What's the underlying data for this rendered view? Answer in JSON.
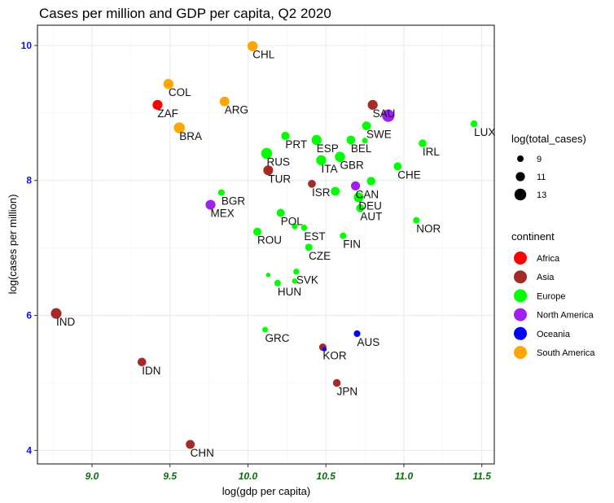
{
  "chart_data": {
    "type": "scatter",
    "title": "Cases per million and GDP per capita, Q2 2020",
    "xlabel": "log(gdp per capita)",
    "ylabel": "log(cases per million)",
    "xlim": [
      8.65,
      11.58
    ],
    "ylim": [
      3.8,
      10.3
    ],
    "xticks": [
      9.0,
      9.5,
      10.0,
      10.5,
      11.0,
      11.5
    ],
    "xtick_labels": [
      "9.0",
      "9.5",
      "10.0",
      "10.5",
      "11.0",
      "11.5"
    ],
    "yticks": [
      4,
      6,
      8,
      10
    ],
    "ytick_labels": [
      "4",
      "6",
      "8",
      "10"
    ],
    "grid": true,
    "legend_position": "right",
    "size_legend": {
      "title": "log(total_cases)",
      "entries": [
        {
          "label": "9",
          "value": 9
        },
        {
          "label": "11",
          "value": 11
        },
        {
          "label": "13",
          "value": 13
        }
      ]
    },
    "color_legend": {
      "title": "continent",
      "entries": [
        {
          "label": "Africa",
          "color": "#ff0000"
        },
        {
          "label": "Asia",
          "color": "#a52a2a"
        },
        {
          "label": "Europe",
          "color": "#00ff00"
        },
        {
          "label": "North America",
          "color": "#a020f0"
        },
        {
          "label": "Oceania",
          "color": "#0000ff"
        },
        {
          "label": "South America",
          "color": "#ffa500"
        }
      ]
    },
    "points": [
      {
        "label": "CHL",
        "x": 10.03,
        "y": 9.99,
        "size": 12.5,
        "continent": "South America"
      },
      {
        "label": "COL",
        "x": 9.49,
        "y": 9.43,
        "size": 12.4,
        "continent": "South America"
      },
      {
        "label": "ZAF",
        "x": 9.42,
        "y": 9.12,
        "size": 12.3,
        "continent": "Africa"
      },
      {
        "label": "ARG",
        "x": 9.85,
        "y": 9.17,
        "size": 12.0,
        "continent": "South America"
      },
      {
        "label": "BRA",
        "x": 9.56,
        "y": 8.78,
        "size": 13.3,
        "continent": "South America"
      },
      {
        "label": "SAU",
        "x": 10.8,
        "y": 9.12,
        "size": 12.3,
        "continent": "Asia"
      },
      {
        "label": "",
        "x": 10.9,
        "y": 8.96,
        "size": 14.7,
        "continent": "North America"
      },
      {
        "label": "SWE",
        "x": 10.76,
        "y": 8.81,
        "size": 11.2,
        "continent": "Europe"
      },
      {
        "label": "LUX",
        "x": 11.45,
        "y": 8.84,
        "size": 9.3,
        "continent": "Europe"
      },
      {
        "label": "PRT",
        "x": 10.24,
        "y": 8.66,
        "size": 10.7,
        "continent": "Europe"
      },
      {
        "label": "ESP",
        "x": 10.44,
        "y": 8.6,
        "size": 12.4,
        "continent": "Europe"
      },
      {
        "label": "BEL",
        "x": 10.66,
        "y": 8.6,
        "size": 11.1,
        "continent": "Europe"
      },
      {
        "label": "",
        "x": 10.75,
        "y": 8.59,
        "size": 8.2,
        "continent": "Europe"
      },
      {
        "label": "IRL",
        "x": 11.12,
        "y": 8.55,
        "size": 10.2,
        "continent": "Europe"
      },
      {
        "label": "RUS",
        "x": 10.12,
        "y": 8.4,
        "size": 13.4,
        "continent": "Europe"
      },
      {
        "label": "ITA",
        "x": 10.47,
        "y": 8.3,
        "size": 12.5,
        "continent": "Europe"
      },
      {
        "label": "GBR",
        "x": 10.59,
        "y": 8.35,
        "size": 12.6,
        "continent": "Europe"
      },
      {
        "label": "CHE",
        "x": 10.96,
        "y": 8.21,
        "size": 10.4,
        "continent": "Europe"
      },
      {
        "label": "TUR",
        "x": 10.13,
        "y": 8.15,
        "size": 12.2,
        "continent": "Asia"
      },
      {
        "label": "ISR",
        "x": 10.41,
        "y": 7.95,
        "size": 10.3,
        "continent": "Asia"
      },
      {
        "label": "",
        "x": 10.56,
        "y": 7.84,
        "size": 11.2,
        "continent": "Europe"
      },
      {
        "label": "CAN",
        "x": 10.69,
        "y": 7.92,
        "size": 11.5,
        "continent": "North America"
      },
      {
        "label": "",
        "x": 10.79,
        "y": 7.99,
        "size": 11.0,
        "continent": "Europe"
      },
      {
        "label": "DEU",
        "x": 10.71,
        "y": 7.75,
        "size": 12.2,
        "continent": "Europe"
      },
      {
        "label": "AUT",
        "x": 10.72,
        "y": 7.59,
        "size": 10.5,
        "continent": "Europe"
      },
      {
        "label": "BGR",
        "x": 9.83,
        "y": 7.82,
        "size": 9.0,
        "continent": "Europe"
      },
      {
        "label": "MEX",
        "x": 9.76,
        "y": 7.64,
        "size": 12.3,
        "continent": "North America"
      },
      {
        "label": "POL",
        "x": 10.21,
        "y": 7.52,
        "size": 10.6,
        "continent": "Europe"
      },
      {
        "label": "",
        "x": 10.3,
        "y": 7.32,
        "size": 8.2,
        "continent": "Europe"
      },
      {
        "label": "EST",
        "x": 10.36,
        "y": 7.3,
        "size": 8.6,
        "continent": "Europe"
      },
      {
        "label": "ROU",
        "x": 10.06,
        "y": 7.24,
        "size": 10.5,
        "continent": "Europe"
      },
      {
        "label": "FIN",
        "x": 10.61,
        "y": 7.18,
        "size": 8.9,
        "continent": "Europe"
      },
      {
        "label": "NOR",
        "x": 11.08,
        "y": 7.41,
        "size": 9.0,
        "continent": "Europe"
      },
      {
        "label": "CZE",
        "x": 10.39,
        "y": 7.01,
        "size": 9.6,
        "continent": "Europe"
      },
      {
        "label": "SVK",
        "x": 10.31,
        "y": 6.65,
        "size": 8.4,
        "continent": "Europe"
      },
      {
        "label": "",
        "x": 10.13,
        "y": 6.6,
        "size": 7.0,
        "continent": "Europe"
      },
      {
        "label": "HUN",
        "x": 10.19,
        "y": 6.48,
        "size": 8.9,
        "continent": "Europe"
      },
      {
        "label": "",
        "x": 10.3,
        "y": 6.51,
        "size": 7.8,
        "continent": "Europe"
      },
      {
        "label": "IND",
        "x": 8.77,
        "y": 6.03,
        "size": 13.0,
        "continent": "Asia"
      },
      {
        "label": "GRC",
        "x": 10.11,
        "y": 5.79,
        "size": 8.1,
        "continent": "Europe"
      },
      {
        "label": "AUS",
        "x": 10.7,
        "y": 5.73,
        "size": 9.0,
        "continent": "Oceania"
      },
      {
        "label": "KOR",
        "x": 10.48,
        "y": 5.53,
        "size": 9.8,
        "continent": "Asia"
      },
      {
        "label": "",
        "x": 10.49,
        "y": 5.5,
        "size": 7.0,
        "continent": "Oceania"
      },
      {
        "label": "IDN",
        "x": 9.32,
        "y": 5.31,
        "size": 11.0,
        "continent": "Asia"
      },
      {
        "label": "JPN",
        "x": 10.57,
        "y": 5.0,
        "size": 10.1,
        "continent": "Asia"
      },
      {
        "label": "CHN",
        "x": 9.63,
        "y": 4.09,
        "size": 11.3,
        "continent": "Asia"
      }
    ]
  }
}
